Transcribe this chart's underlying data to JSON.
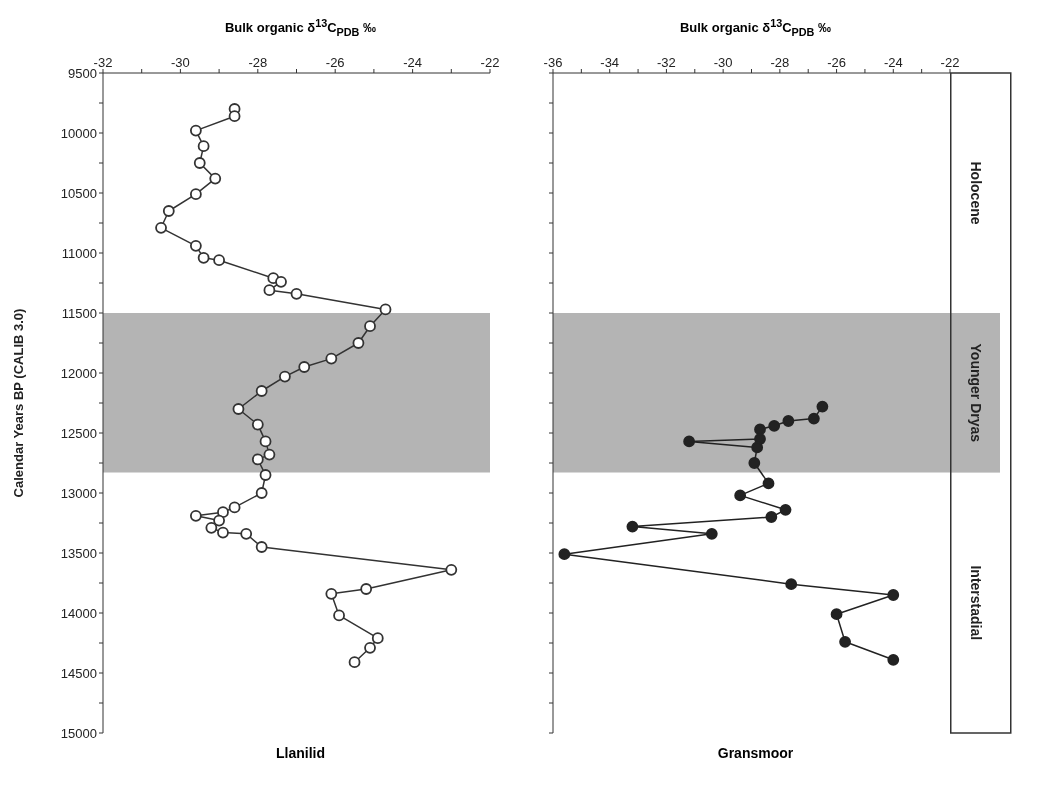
{
  "chart_data": [
    {
      "type": "line",
      "title": "Llanilid",
      "xlabel": "Bulk organic δ$^{13}$C$_{PDB}$ ‰",
      "ylabel": "Calendar Years BP (CALIB 3.0)",
      "marker": "circle",
      "line_style": "solid",
      "xlim": [
        -32,
        -22
      ],
      "xticks": [
        -32,
        {
          "value": -31,
          "label": null
        },
        -30,
        {
          "value": -29,
          "label": null
        },
        -28,
        {
          "value": -27,
          "label": null
        },
        -26,
        {
          "value": -25,
          "label": null
        },
        -24,
        {
          "value": -23,
          "label": null
        },
        -22
      ],
      "ylim": [
        15000,
        9500
      ],
      "yticks": [
        9500,
        {
          "value": 9750,
          "label": null
        },
        10000,
        {
          "value": 10250,
          "label": null
        },
        10500,
        {
          "value": 10750,
          "label": null
        },
        11000,
        {
          "value": 11250,
          "label": null
        },
        11500,
        {
          "value": 11750,
          "label": null
        },
        12000,
        {
          "value": 12250,
          "label": null
        },
        12500,
        {
          "value": 12750,
          "label": null
        },
        13000,
        {
          "value": 13250,
          "label": null
        },
        13500,
        {
          "value": 13750,
          "label": null
        },
        14000,
        {
          "value": 14250,
          "label": null
        },
        14500,
        {
          "value": 14750,
          "label": null
        },
        15000
      ],
      "bands": [
        {
          "axis": "y",
          "from": 11500,
          "to": 12830,
          "color": "#b4b4b4"
        }
      ],
      "series": [
        {
          "color": "#333333",
          "x": [
            -28.6,
            -28.6,
            -29.6,
            -29.4,
            -29.5,
            -29.1,
            -29.6,
            -30.3,
            -30.5,
            -29.6,
            -29.4,
            -29.0,
            -27.6,
            -27.4,
            -27.7,
            -27.0,
            -24.7,
            -25.1,
            -25.4,
            -26.1,
            -26.8,
            -27.3,
            -27.9,
            -28.5,
            -28.0,
            -27.8,
            -27.7,
            -28.0,
            -27.8,
            -27.9,
            -28.6,
            -28.9,
            -29.6,
            -29.0,
            -29.2,
            -28.9,
            -28.3,
            -27.9,
            -23.0,
            -25.2,
            -26.1,
            -25.9,
            -24.9,
            -25.1,
            -25.5
          ],
          "values": [
            9800,
            9860,
            9980,
            10110,
            10250,
            10380,
            10510,
            10650,
            10790,
            10940,
            11040,
            11060,
            11210,
            11240,
            11310,
            11340,
            11470,
            11610,
            11750,
            11880,
            11950,
            12030,
            12150,
            12300,
            12430,
            12570,
            12680,
            12720,
            12850,
            13000,
            13120,
            13160,
            13190,
            13230,
            13290,
            13330,
            13340,
            13450,
            13640,
            13800,
            13840,
            14020,
            14210,
            14290,
            14410
          ]
        }
      ]
    },
    {
      "type": "line",
      "title": "Gransmoor",
      "xlabel": "Bulk organic δ$^{13}$C$_{PDB}$ ‰",
      "marker": "circle",
      "line_style": "solid",
      "tick_labels": "x",
      "xlim": [
        -36,
        -22
      ],
      "xticks": [
        -36,
        {
          "value": -35,
          "label": null
        },
        -34,
        {
          "value": -33,
          "label": null
        },
        -32,
        {
          "value": -31,
          "label": null
        },
        -30,
        {
          "value": -29,
          "label": null
        },
        -28,
        {
          "value": -27,
          "label": null
        },
        -26,
        {
          "value": -25,
          "label": null
        },
        -24,
        {
          "value": -23,
          "label": null
        },
        -22
      ],
      "ylim": [
        15000,
        9500
      ],
      "yticks": [
        9500,
        {
          "value": 9750,
          "label": null
        },
        10000,
        {
          "value": 10250,
          "label": null
        },
        10500,
        {
          "value": 10750,
          "label": null
        },
        11000,
        {
          "value": 11250,
          "label": null
        },
        11500,
        {
          "value": 11750,
          "label": null
        },
        12000,
        {
          "value": 12250,
          "label": null
        },
        12500,
        {
          "value": 12750,
          "label": null
        },
        13000,
        {
          "value": 13250,
          "label": null
        },
        13500,
        {
          "value": 13750,
          "label": null
        },
        14000,
        {
          "value": 14250,
          "label": null
        },
        14500,
        {
          "value": 14750,
          "label": null
        },
        15000
      ],
      "bands": [
        {
          "axis": "y",
          "from": 11500,
          "to": 12830,
          "label": "Younger Dryas",
          "color": "#b4b4b4"
        }
      ],
      "annotations": [
        "Holocene",
        "Interstadial"
      ],
      "series": [
        {
          "color": "#222222",
          "x": [
            -26.5,
            -26.8,
            -27.7,
            -28.2,
            -28.7,
            -28.7,
            -31.2,
            -28.8,
            -28.9,
            -28.4,
            -29.4,
            -27.8,
            -28.3,
            -33.2,
            -30.4,
            -35.6,
            -27.6,
            -24.0,
            -26.0,
            -25.7,
            -24.0
          ],
          "values": [
            12280,
            12380,
            12400,
            12440,
            12470,
            12550,
            12570,
            12620,
            12750,
            12920,
            13020,
            13140,
            13200,
            13280,
            13340,
            13510,
            13760,
            13850,
            14010,
            14240,
            14390
          ]
        }
      ]
    }
  ]
}
